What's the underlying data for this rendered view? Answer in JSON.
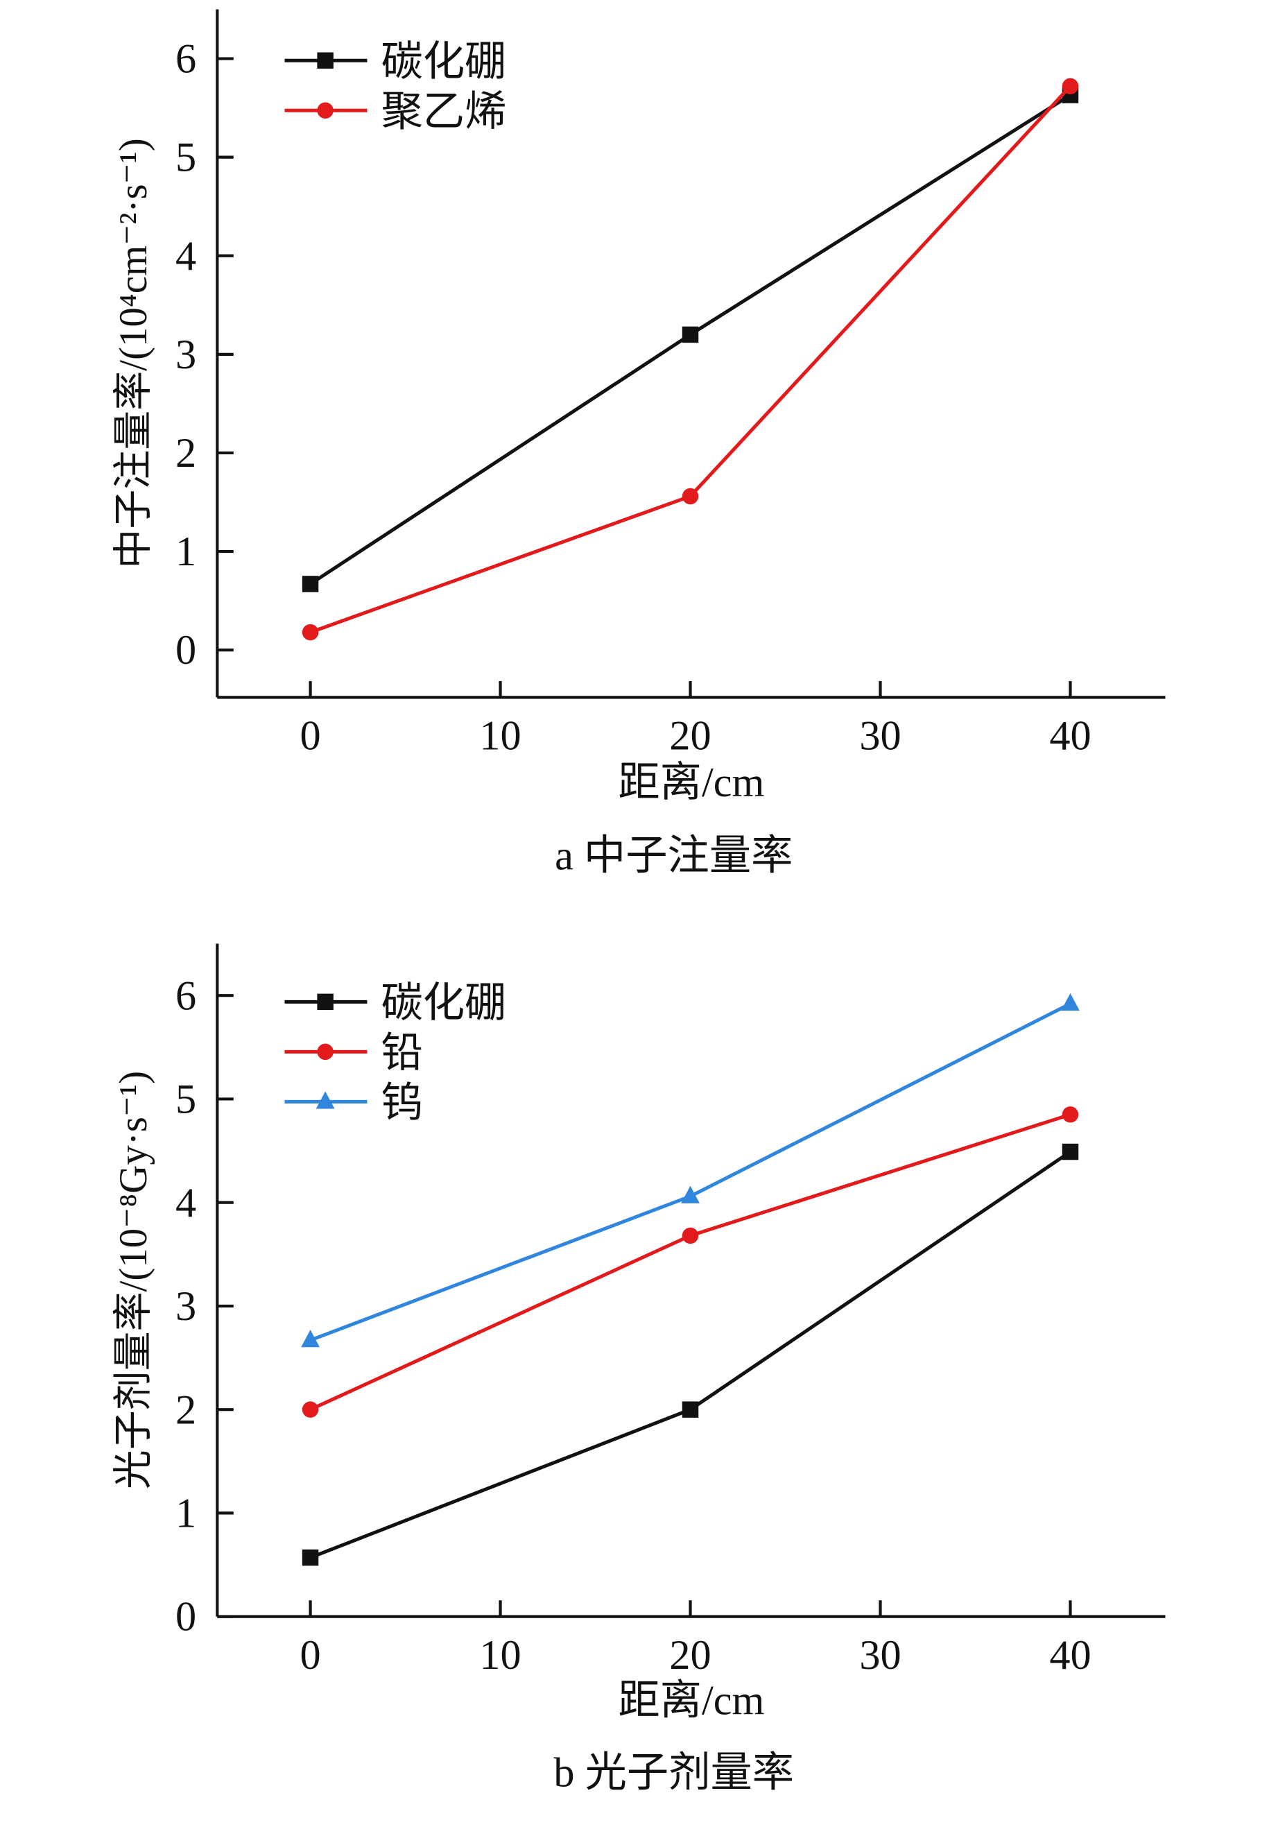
{
  "chart_data": [
    {
      "type": "line",
      "caption": "a  中子注量率",
      "xlabel": "距离/cm",
      "ylabel": "中子注量率/(10⁴cm⁻²·s⁻¹)",
      "x": [
        0,
        20,
        40
      ],
      "xlim": [
        -4.9,
        45
      ],
      "ylim": [
        -0.48,
        6.5
      ],
      "xticks": [
        0,
        10,
        20,
        30,
        40
      ],
      "yticks": [
        0,
        1,
        2,
        3,
        4,
        5,
        6
      ],
      "grid": false,
      "legend_position": "top-left",
      "series": [
        {
          "name": "碳化硼",
          "color": "#111111",
          "marker": "square",
          "values": [
            0.67,
            3.2,
            5.63
          ]
        },
        {
          "name": "聚乙烯",
          "color": "#e31a1c",
          "marker": "circle",
          "values": [
            0.18,
            1.56,
            5.72
          ]
        }
      ]
    },
    {
      "type": "line",
      "caption": "b  光子剂量率",
      "xlabel": "距离/cm",
      "ylabel": "光子剂量率/(10⁻⁸Gy·s⁻¹)",
      "x": [
        0,
        20,
        40
      ],
      "xlim": [
        -4.9,
        45
      ],
      "ylim": [
        0,
        6.5
      ],
      "xticks": [
        0,
        10,
        20,
        30,
        40
      ],
      "yticks": [
        0,
        1,
        2,
        3,
        4,
        5,
        6
      ],
      "grid": false,
      "legend_position": "top-left",
      "series": [
        {
          "name": "碳化硼",
          "color": "#111111",
          "marker": "square",
          "values": [
            0.57,
            2.0,
            4.49
          ]
        },
        {
          "name": "铅",
          "color": "#e31a1c",
          "marker": "circle",
          "values": [
            2.0,
            3.68,
            4.85
          ]
        },
        {
          "name": "钨",
          "color": "#2f86dc",
          "marker": "triangle",
          "values": [
            2.67,
            4.06,
            5.92
          ]
        }
      ]
    }
  ]
}
